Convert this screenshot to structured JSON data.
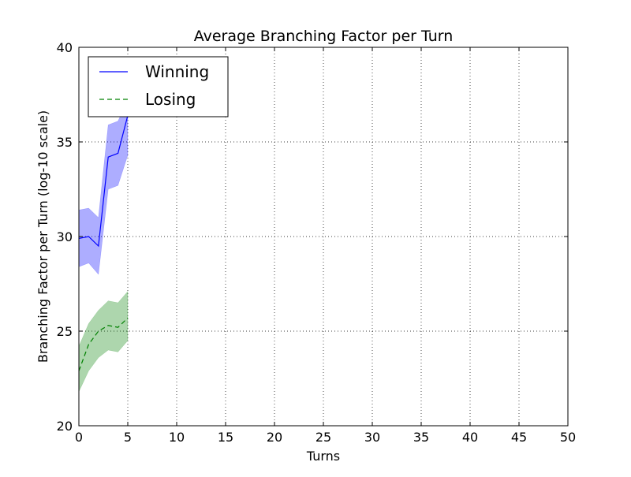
{
  "chart_data": {
    "type": "line",
    "title": "Average Branching Factor per Turn",
    "xlabel": "Turns",
    "ylabel": "Branching Factor per Turn (log-10 scale)",
    "xlim": [
      0,
      50
    ],
    "ylim": [
      20,
      40
    ],
    "xticks": [
      0,
      5,
      10,
      15,
      20,
      25,
      30,
      35,
      40,
      45,
      50
    ],
    "yticks": [
      20,
      25,
      30,
      35,
      40
    ],
    "grid": true,
    "legend_position": "top-left",
    "series": [
      {
        "name": "Winning",
        "color": "#0000ff",
        "line_style": "solid",
        "x": [
          0,
          1,
          2,
          3,
          4,
          5
        ],
        "y": [
          29.9,
          30.0,
          29.5,
          34.2,
          34.4,
          36.4
        ],
        "upper": [
          31.4,
          31.5,
          31.0,
          35.9,
          36.1,
          37.2
        ],
        "lower": [
          28.4,
          28.6,
          28.0,
          32.5,
          32.7,
          34.3
        ]
      },
      {
        "name": "Losing",
        "color": "#008000",
        "line_style": "dashed",
        "x": [
          0,
          1,
          2,
          3,
          4,
          5
        ],
        "y": [
          22.9,
          24.3,
          25.0,
          25.3,
          25.2,
          25.7
        ],
        "upper": [
          24.2,
          25.4,
          26.1,
          26.6,
          26.5,
          27.1
        ],
        "lower": [
          21.8,
          22.9,
          23.6,
          24.0,
          23.9,
          24.5
        ]
      }
    ]
  }
}
